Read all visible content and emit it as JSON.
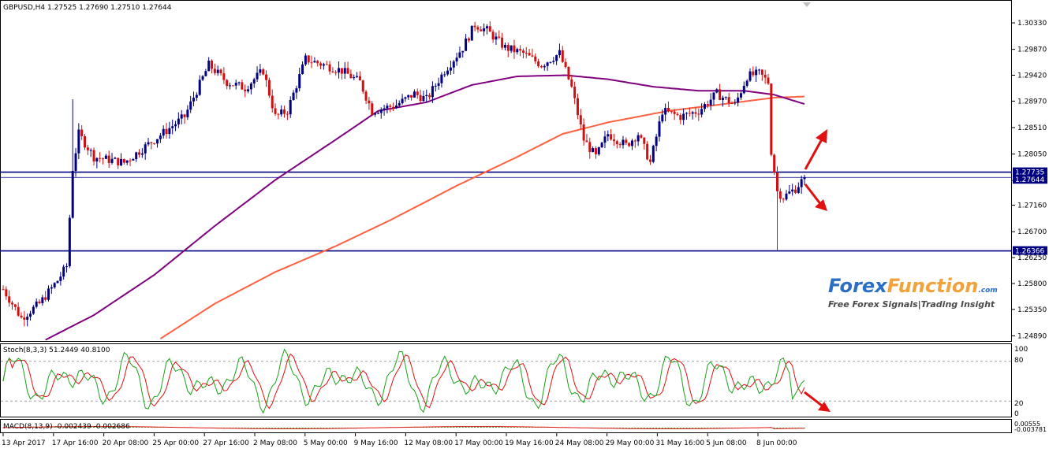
{
  "colors": {
    "bull": "#000080",
    "bear": "#d01010",
    "ma_fast": "#800080",
    "ma_slow": "#ff6040",
    "level_line": "#000080",
    "label_bg": "#000080",
    "stoch_main": "#1aa01a",
    "stoch_signal": "#e01010",
    "macd_hist": "#2db02d",
    "macd_signal": "#e01010",
    "arrow": "#e01010",
    "brand_blue": "#2a6fc4",
    "brand_orange": "#f2a23a"
  },
  "main_header": "GBPUSD,H4  1.27525 1.27690 1.27510 1.27644",
  "stoch_header": "Stoch(8,3,3) 51.2449 40.8100",
  "macd_header": "MACD(8,13,9) -0.002439 -0.002686",
  "stoch_scale": [
    "100",
    "80",
    "20",
    "0"
  ],
  "macd_scale": [
    "0.00555",
    "-0.003781"
  ],
  "level_labels": [
    "1.27735",
    "1.27644",
    "1.26366"
  ],
  "watermark": {
    "brand_part1": "Forex",
    "brand_part2": "Function",
    "brand_suffix": ".com",
    "tagline": "Free Forex Signals|Trading Insight"
  },
  "chart_data": {
    "type": "candlestick",
    "symbol": "GBPUSD",
    "timeframe": "H4",
    "ohlc_last": {
      "open": 1.27525,
      "high": 1.2769,
      "low": 1.2751,
      "close": 1.27644
    },
    "ylim": [
      1.248,
      1.307
    ],
    "y_ticks": [
      1.3033,
      1.2987,
      1.2942,
      1.2897,
      1.2851,
      1.2805,
      1.2759,
      1.2716,
      1.267,
      1.2625,
      1.258,
      1.2535,
      1.2489
    ],
    "x_tick_labels": [
      "13 Apr 2017",
      "17 Apr 16:00",
      "20 Apr 08:00",
      "25 Apr 00:00",
      "27 Apr 16:00",
      "2 May 08:00",
      "5 May 00:00",
      "9 May 16:00",
      "12 May 08:00",
      "17 May 00:00",
      "19 May 16:00",
      "24 May 08:00",
      "29 May 00:00",
      "31 May 16:00",
      "5 Jun 08:00",
      "8 Jun 00:00"
    ],
    "horizontal_levels": [
      1.27735,
      1.27644,
      1.26366
    ],
    "price_path_waypoints": [
      [
        0,
        1.257
      ],
      [
        6,
        1.252
      ],
      [
        12,
        1.2545
      ],
      [
        18,
        1.2585
      ],
      [
        21,
        1.261
      ],
      [
        23,
        1.278
      ],
      [
        25,
        1.284
      ],
      [
        30,
        1.28
      ],
      [
        40,
        1.279
      ],
      [
        50,
        1.283
      ],
      [
        60,
        1.287
      ],
      [
        68,
        1.296
      ],
      [
        74,
        1.293
      ],
      [
        80,
        1.292
      ],
      [
        86,
        1.295
      ],
      [
        90,
        1.287
      ],
      [
        94,
        1.288
      ],
      [
        100,
        1.297
      ],
      [
        106,
        1.296
      ],
      [
        112,
        1.295
      ],
      [
        118,
        1.293
      ],
      [
        122,
        1.288
      ],
      [
        130,
        1.289
      ],
      [
        136,
        1.291
      ],
      [
        140,
        1.29
      ],
      [
        146,
        1.295
      ],
      [
        152,
        1.299
      ],
      [
        156,
        1.303
      ],
      [
        160,
        1.302
      ],
      [
        166,
        1.299
      ],
      [
        172,
        1.298
      ],
      [
        178,
        1.296
      ],
      [
        184,
        1.298
      ],
      [
        188,
        1.292
      ],
      [
        192,
        1.283
      ],
      [
        196,
        1.28
      ],
      [
        200,
        1.284
      ],
      [
        206,
        1.282
      ],
      [
        210,
        1.284
      ],
      [
        214,
        1.279
      ],
      [
        218,
        1.288
      ],
      [
        224,
        1.287
      ],
      [
        230,
        1.288
      ],
      [
        236,
        1.291
      ],
      [
        242,
        1.289
      ],
      [
        246,
        1.294
      ],
      [
        250,
        1.2945
      ],
      [
        253,
        1.293
      ],
      [
        254,
        1.281
      ],
      [
        256,
        1.274
      ],
      [
        258,
        1.273
      ],
      [
        262,
        1.2745
      ],
      [
        265,
        1.2764
      ]
    ],
    "ma_fast_waypoints": [
      [
        14,
        1.2482
      ],
      [
        30,
        1.2525
      ],
      [
        50,
        1.2595
      ],
      [
        70,
        1.268
      ],
      [
        90,
        1.276
      ],
      [
        110,
        1.283
      ],
      [
        124,
        1.288
      ],
      [
        140,
        1.2895
      ],
      [
        155,
        1.2925
      ],
      [
        170,
        1.294
      ],
      [
        186,
        1.2942
      ],
      [
        200,
        1.2935
      ],
      [
        215,
        1.2922
      ],
      [
        230,
        1.2915
      ],
      [
        245,
        1.2915
      ],
      [
        255,
        1.2908
      ],
      [
        265,
        1.2892
      ]
    ],
    "ma_slow_waypoints": [
      [
        52,
        1.2484
      ],
      [
        70,
        1.2545
      ],
      [
        90,
        1.26
      ],
      [
        110,
        1.2645
      ],
      [
        128,
        1.269
      ],
      [
        150,
        1.275
      ],
      [
        170,
        1.28
      ],
      [
        185,
        1.284
      ],
      [
        200,
        1.286
      ],
      [
        220,
        1.288
      ],
      [
        240,
        1.2893
      ],
      [
        255,
        1.2903
      ],
      [
        265,
        1.2905
      ]
    ],
    "stochastic": {
      "period": [
        8,
        3,
        3
      ],
      "main": 51.2449,
      "signal": 40.81,
      "levels": [
        80,
        20
      ]
    },
    "macd": {
      "params": [
        8,
        13,
        9
      ],
      "main": -0.002439,
      "signal": -0.002686
    }
  }
}
